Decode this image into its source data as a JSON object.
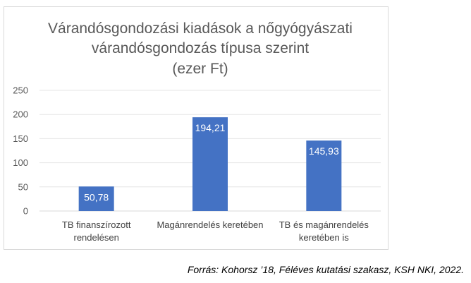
{
  "chart_data": {
    "type": "bar",
    "title_lines": [
      "Várandósgondozási kiadások a nőgyógyászati",
      "várandósgondozás típusa szerint",
      "(ezer Ft)"
    ],
    "categories": [
      [
        "TB finanszírozott",
        "rendelésen"
      ],
      [
        "Magánrendelés keretében"
      ],
      [
        "TB és magánrendelés",
        "keretében is"
      ]
    ],
    "values": [
      50.78,
      194.21,
      145.93
    ],
    "data_labels": [
      "50,78",
      "194,21",
      "145,93"
    ],
    "ylim": [
      0,
      250
    ],
    "yticks": [
      0,
      50,
      100,
      150,
      200,
      250
    ],
    "grid": true,
    "bar_color": "#4472c4"
  },
  "source": "Forrás: Kohorsz ’18, Féléves kutatási szakasz, KSH NKI, 2022."
}
